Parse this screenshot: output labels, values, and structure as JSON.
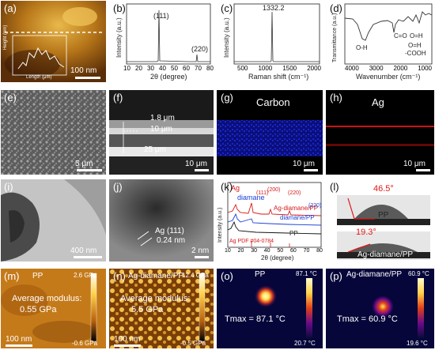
{
  "labels": {
    "a": "(a)",
    "b": "(b)",
    "c": "(c)",
    "d": "(d)",
    "e": "(e)",
    "f": "(f)",
    "g": "(g)",
    "h": "(h)",
    "i": "(i)",
    "j": "(j)",
    "k": "(k)",
    "l": "(l)",
    "m": "(m)",
    "n": "(n)",
    "o": "(o)",
    "p": "(p)"
  },
  "a": {
    "scale": "100 nm",
    "ylabel": "Height (nm)",
    "xlabel": "Length (μm)",
    "yticks": [
      "10",
      "8",
      "6",
      "4",
      "2",
      "0"
    ],
    "xticks": [
      "0",
      "1",
      "2",
      "3",
      "4"
    ]
  },
  "b": {
    "ylabel": "Intensity (a.u.)",
    "xlabel": "2θ (degree)",
    "xticks": [
      "10",
      "20",
      "30",
      "40",
      "50",
      "60",
      "70",
      "80"
    ],
    "peak1": "(111)",
    "peak2": "(220)"
  },
  "c": {
    "ylabel": "Intensity (a.u.)",
    "xlabel": "Raman shift (cm⁻¹)",
    "xticks": [
      "500",
      "1000",
      "1500",
      "2000"
    ],
    "peak": "1332.2"
  },
  "d": {
    "ylabel": "Transmittance (a.u.)",
    "xlabel": "Wavenumber (cm⁻¹)",
    "xticks": [
      "4000",
      "3000",
      "2000",
      "1000"
    ],
    "ann1": "C=O",
    "ann2": "O=H",
    "ann3": "O-H",
    "ann4": "-COOH",
    "ann5": "O=H"
  },
  "e": {
    "scale": "5 μm"
  },
  "f": {
    "scale": "10 μm",
    "d1": "1.8 μm",
    "d2": "10 μm",
    "d3": "25 μm"
  },
  "g": {
    "title": "Carbon",
    "scale": "10 μm"
  },
  "h": {
    "title": "Ag",
    "scale": "10 μm"
  },
  "i": {
    "scale": "400 nm"
  },
  "j": {
    "scale": "2 nm",
    "ann1": "Ag (111)",
    "ann2": "0.24 nm"
  },
  "k": {
    "legend1": "Ag",
    "legend2": "diamane",
    "s1": "Ag-diamane/PP",
    "s2": "diamane/PP",
    "s3": "PP",
    "pdf": "Ag PDF #04-0784",
    "xlabel": "2θ (degree)",
    "ylabel": "Intensity (a.u.)",
    "xticks": [
      "10",
      "20",
      "30",
      "40",
      "50",
      "60",
      "70",
      "80"
    ],
    "p1": "(111)",
    "p2": "(200)",
    "p3": "(220)",
    "p4": "(220)"
  },
  "l": {
    "angle1": "46.5°",
    "name1": "PP",
    "angle2": "19.3°",
    "name2": "Ag-diamane/PP"
  },
  "m": {
    "name": "PP",
    "text1": "Average modulus:",
    "text2": "0.55 GPa",
    "cmax": "2.6 GPa",
    "cmin": "-0.6 GPa",
    "scale": "100 nm"
  },
  "n": {
    "name": "Ag-diamane/PP",
    "text1": "Average modulus:",
    "text2": "5.5 GPa",
    "cmax": "12.4 GPa",
    "cmin": "-0.5 GPa",
    "scale": "100 nm"
  },
  "o": {
    "name": "PP",
    "tmax": "Tmax = 87.1 °C",
    "cmax": "87.1 °C",
    "cmin": "20.7 °C"
  },
  "p": {
    "name": "Ag-diamane/PP",
    "tmax": "Tmax = 60.9 °C",
    "cmax": "60.9 °C",
    "cmin": "19.6 °C"
  },
  "colors": {
    "afm_dark": "#3b1a06",
    "afm_mid": "#a86d1a",
    "afm_light": "#e9b94b",
    "carbon": "#1c28ff",
    "ag": "#e01818",
    "series_red": "#d61a1a",
    "series_blue": "#1a3fd6",
    "thermal_hot": "#ffe45a"
  }
}
